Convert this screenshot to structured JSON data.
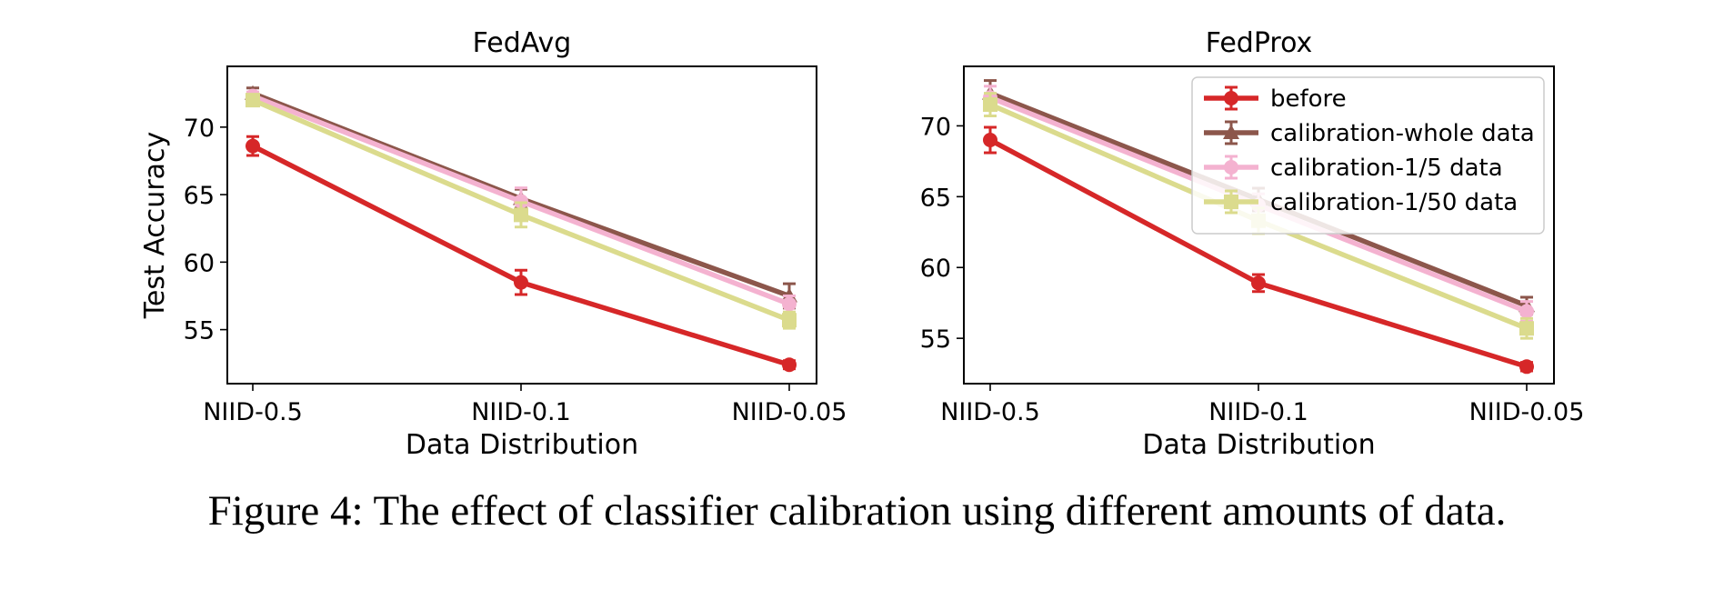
{
  "figure": {
    "caption": "Figure 4: The effect of classifier calibration using different amounts of data."
  },
  "colors": {
    "before": "#d62728",
    "calibration-whole data": "#8c564b",
    "calibration-1/5 data": "#f4b2d0",
    "calibration-1/50 data": "#dbdb8d"
  },
  "chart_data": [
    {
      "type": "line",
      "title": "FedAvg",
      "xlabel": "Data Distribution",
      "ylabel": "Test Accuracy",
      "categories": [
        "NIID-0.5",
        "NIID-0.1",
        "NIID-0.05"
      ],
      "ylim": [
        51,
        74.5
      ],
      "yticks": [
        55,
        60,
        65,
        70
      ],
      "legend": false,
      "series": [
        {
          "name": "before",
          "marker": "circle",
          "values": [
            68.6,
            58.5,
            52.4
          ],
          "errors": [
            0.7,
            0.9,
            0.3
          ]
        },
        {
          "name": "calibration-whole data",
          "marker": "triangle",
          "values": [
            72.5,
            64.7,
            57.5
          ],
          "errors": [
            0.4,
            0.7,
            0.9
          ]
        },
        {
          "name": "calibration-1/5 data",
          "marker": "circle",
          "values": [
            72.3,
            64.5,
            56.9
          ],
          "errors": [
            0.3,
            1.0,
            0.6
          ]
        },
        {
          "name": "calibration-1/50 data",
          "marker": "square",
          "values": [
            72.0,
            63.5,
            55.7
          ],
          "errors": [
            0.3,
            0.9,
            0.6
          ]
        }
      ]
    },
    {
      "type": "line",
      "title": "FedProx",
      "xlabel": "Data Distribution",
      "ylabel": "",
      "categories": [
        "NIID-0.5",
        "NIID-0.1",
        "NIID-0.05"
      ],
      "ylim": [
        51.8,
        74.2
      ],
      "yticks": [
        55,
        60,
        65,
        70
      ],
      "legend": "top-right",
      "series": [
        {
          "name": "before",
          "marker": "circle",
          "values": [
            69.0,
            58.9,
            53.0
          ],
          "errors": [
            0.9,
            0.6,
            0.3
          ]
        },
        {
          "name": "calibration-whole data",
          "marker": "triangle",
          "values": [
            72.3,
            64.8,
            57.3
          ],
          "errors": [
            0.9,
            0.8,
            0.6
          ]
        },
        {
          "name": "calibration-1/5 data",
          "marker": "circle",
          "values": [
            72.0,
            64.4,
            56.9
          ],
          "errors": [
            0.8,
            0.8,
            0.7
          ]
        },
        {
          "name": "calibration-1/50 data",
          "marker": "square",
          "values": [
            71.5,
            63.3,
            55.7
          ],
          "errors": [
            0.8,
            0.9,
            0.7
          ]
        }
      ]
    }
  ]
}
